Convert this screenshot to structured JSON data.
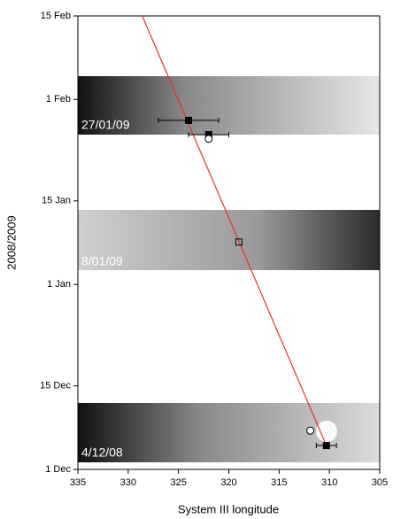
{
  "chart_data": {
    "type": "scatter",
    "xlabel": "System III longitude",
    "ylabel": "2008/2009",
    "xlim": [
      335,
      305
    ],
    "xticks": [
      335,
      330,
      325,
      320,
      315,
      310,
      305
    ],
    "ylim": [
      0,
      76
    ],
    "yticks": [
      {
        "value": 0,
        "label": "1 Dec"
      },
      {
        "value": 14,
        "label": "15 Dec"
      },
      {
        "value": 31,
        "label": "1 Jan"
      },
      {
        "value": 45,
        "label": "15 Jan"
      },
      {
        "value": 62,
        "label": "1 Feb"
      },
      {
        "value": 76,
        "label": "15 Feb"
      }
    ],
    "annotations": [
      "27/01/09",
      "8/01/09",
      "4/12/08"
    ],
    "series": [
      {
        "marker": "line",
        "color": "#e8302a",
        "x": [
          328.6,
          310.3
        ],
        "y": [
          76,
          4
        ]
      },
      {
        "marker": "filled-square",
        "color": "#000000",
        "x": [
          324,
          322,
          310.3
        ],
        "y": [
          58.5,
          56.1,
          4.0
        ],
        "xerr": [
          3,
          2,
          1
        ]
      },
      {
        "marker": "open-square",
        "color": "#000000",
        "x": [
          319
        ],
        "y": [
          38.1
        ]
      },
      {
        "marker": "open-circle",
        "color": "#000000",
        "x": [
          322,
          311.9
        ],
        "y": [
          55.4,
          6.5
        ]
      }
    ]
  }
}
